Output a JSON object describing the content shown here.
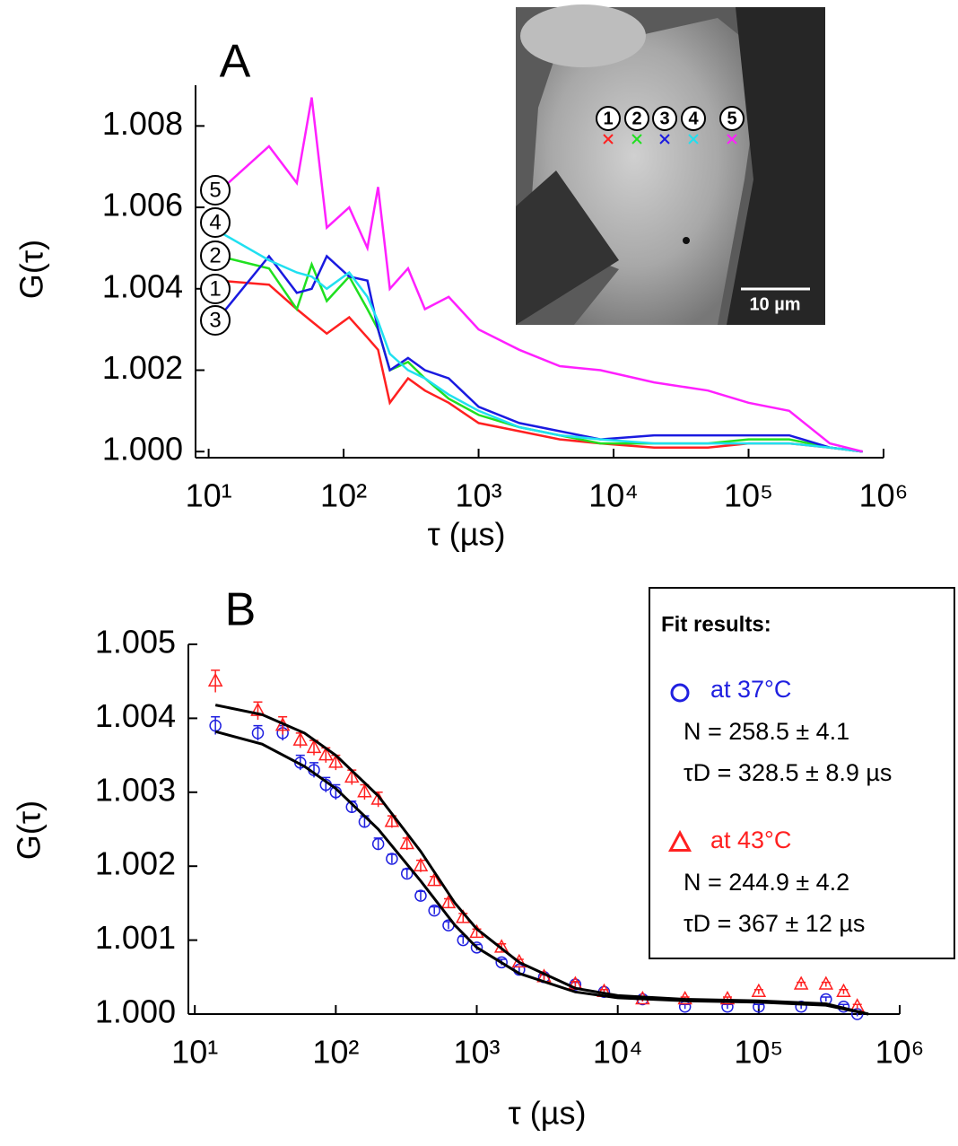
{
  "chart_data": [
    {
      "type": "line",
      "panel_label": "A",
      "xlabel": "τ (µs)",
      "ylabel": "G(τ)",
      "xscale": "log",
      "xlim": [
        8,
        1000000
      ],
      "ylim": [
        0.99985,
        1.009
      ],
      "xticks": [
        {
          "value": 10,
          "label": "10¹"
        },
        {
          "value": 100,
          "label": "10²"
        },
        {
          "value": 1000,
          "label": "10³"
        },
        {
          "value": 10000,
          "label": "10⁴"
        },
        {
          "value": 100000,
          "label": "10⁵"
        },
        {
          "value": 1000000,
          "label": "10⁶"
        }
      ],
      "yticks": [
        {
          "value": 1,
          "label": "1.000"
        },
        {
          "value": 1.002,
          "label": "1.002"
        },
        {
          "value": 1.004,
          "label": "1.004"
        },
        {
          "value": 1.006,
          "label": "1.006"
        },
        {
          "value": 1.008,
          "label": "1.008"
        }
      ],
      "series": [
        {
          "name": "1",
          "color": "#ff2020",
          "x": [
            12,
            28,
            45,
            58,
            75,
            110,
            150,
            180,
            220,
            300,
            400,
            600,
            1000,
            2000,
            4000,
            8000,
            20000,
            50000,
            100000,
            200000,
            400000,
            700000
          ],
          "values": [
            1.0042,
            1.0041,
            1.0035,
            1.0032,
            1.0029,
            1.0033,
            1.0028,
            1.0025,
            1.0012,
            1.0018,
            1.0015,
            1.0012,
            1.0007,
            1.0005,
            1.0003,
            1.0002,
            1.0001,
            1.0001,
            1.0002,
            1.0002,
            1.0001,
            1.0
          ]
        },
        {
          "name": "2",
          "color": "#20e020",
          "x": [
            12,
            28,
            45,
            58,
            75,
            110,
            150,
            180,
            220,
            300,
            400,
            600,
            1000,
            2000,
            4000,
            8000,
            20000,
            50000,
            100000,
            200000,
            400000,
            700000
          ],
          "values": [
            1.0048,
            1.0045,
            1.0035,
            1.0046,
            1.0037,
            1.0043,
            1.0035,
            1.003,
            1.002,
            1.0022,
            1.0018,
            1.0013,
            1.0009,
            1.0006,
            1.0004,
            1.0002,
            1.0002,
            1.0002,
            1.0003,
            1.0003,
            1.0001,
            1.0
          ]
        },
        {
          "name": "3",
          "color": "#1a1ae0",
          "x": [
            12,
            28,
            45,
            58,
            75,
            110,
            150,
            180,
            220,
            300,
            400,
            600,
            1000,
            2000,
            4000,
            8000,
            20000,
            50000,
            100000,
            200000,
            400000,
            700000
          ],
          "values": [
            1.0033,
            1.0048,
            1.0039,
            1.004,
            1.0048,
            1.0043,
            1.0042,
            1.003,
            1.002,
            1.0023,
            1.002,
            1.0018,
            1.0011,
            1.0007,
            1.0005,
            1.0003,
            1.0004,
            1.0004,
            1.0004,
            1.0004,
            1.0001,
            1.0
          ]
        },
        {
          "name": "4",
          "color": "#20e0f0",
          "x": [
            12,
            28,
            45,
            58,
            75,
            110,
            150,
            180,
            220,
            300,
            400,
            600,
            1000,
            2000,
            4000,
            8000,
            20000,
            50000,
            100000,
            200000,
            400000,
            700000
          ],
          "values": [
            1.0054,
            1.0047,
            1.0044,
            1.0043,
            1.004,
            1.0044,
            1.0038,
            1.0032,
            1.0024,
            1.002,
            1.0018,
            1.0014,
            1.001,
            1.0006,
            1.0004,
            1.0003,
            1.0002,
            1.0002,
            1.0002,
            1.0002,
            1.0001,
            1.0
          ]
        },
        {
          "name": "5",
          "color": "#ff20ff",
          "x": [
            12,
            28,
            45,
            58,
            75,
            110,
            150,
            180,
            220,
            300,
            400,
            600,
            1000,
            2000,
            4000,
            8000,
            20000,
            50000,
            100000,
            200000,
            400000,
            700000
          ],
          "values": [
            1.0064,
            1.0075,
            1.0066,
            1.0087,
            1.0055,
            1.006,
            1.005,
            1.0065,
            1.004,
            1.0045,
            1.0035,
            1.0038,
            1.003,
            1.0025,
            1.0021,
            1.002,
            1.0017,
            1.0015,
            1.0012,
            1.001,
            1.0002,
            1.0
          ]
        }
      ],
      "inset": {
        "scale_bar": "10 µm"
      }
    },
    {
      "type": "scatter",
      "panel_label": "B",
      "xlabel": "τ (µs)",
      "ylabel": "G(τ)",
      "xscale": "log",
      "xlim": [
        9,
        1000000
      ],
      "ylim": [
        1,
        1.005
      ],
      "xticks": [
        {
          "value": 10,
          "label": "10¹"
        },
        {
          "value": 100,
          "label": "10²"
        },
        {
          "value": 1000,
          "label": "10³"
        },
        {
          "value": 10000,
          "label": "10⁴"
        },
        {
          "value": 100000,
          "label": "10⁵"
        },
        {
          "value": 1000000,
          "label": "10⁶"
        }
      ],
      "yticks": [
        {
          "value": 1,
          "label": "1.000"
        },
        {
          "value": 1.001,
          "label": "1.001"
        },
        {
          "value": 1.002,
          "label": "1.002"
        },
        {
          "value": 1.003,
          "label": "1.003"
        },
        {
          "value": 1.004,
          "label": "1.004"
        },
        {
          "value": 1.005,
          "label": "1.005"
        }
      ],
      "legend_title": "Fit results:",
      "series": [
        {
          "name": "at 37°C",
          "color": "#2020e0",
          "marker": "circle",
          "fit_results": [
            "N  = 258.5 ± 4.1",
            "τD = 328.5 ± 8.9 µs"
          ],
          "x": [
            14,
            28,
            42,
            56,
            70,
            85,
            100,
            130,
            160,
            200,
            250,
            320,
            400,
            500,
            630,
            800,
            1000,
            1500,
            2000,
            3000,
            5000,
            8000,
            15000,
            30000,
            60000,
            100000,
            200000,
            300000,
            400000,
            500000
          ],
          "values": [
            1.0039,
            1.0038,
            1.0038,
            1.0034,
            1.0033,
            1.0031,
            1.003,
            1.0028,
            1.0026,
            1.0023,
            1.0021,
            1.0019,
            1.0016,
            1.0014,
            1.0012,
            1.001,
            1.0009,
            1.0007,
            1.0006,
            1.0005,
            1.0004,
            1.0003,
            1.0002,
            1.0001,
            1.0001,
            1.0001,
            1.0001,
            1.0002,
            1.0001,
            1.0
          ],
          "errors": [
            0.00012,
            0.0001,
            0.0001,
            0.0001,
            0.0001,
            0.0001,
            0.0001,
            8e-05,
            8e-05,
            8e-05,
            6e-05,
            6e-05,
            6e-05,
            5e-05,
            5e-05,
            5e-05,
            4e-05,
            4e-05,
            4e-05,
            3e-05,
            3e-05,
            3e-05,
            3e-05,
            3e-05,
            3e-05,
            3e-05,
            3e-05,
            3e-05,
            3e-05,
            3e-05
          ]
        },
        {
          "name": "at 43°C",
          "color": "#ff2020",
          "marker": "triangle",
          "fit_results": [
            "N  = 244.9 ± 4.2",
            "τD = 367 ± 12 µs"
          ],
          "x": [
            14,
            28,
            42,
            56,
            70,
            85,
            100,
            130,
            160,
            200,
            250,
            320,
            400,
            500,
            630,
            800,
            1000,
            1500,
            2000,
            3000,
            5000,
            8000,
            15000,
            30000,
            60000,
            100000,
            200000,
            300000,
            400000,
            500000
          ],
          "values": [
            1.0045,
            1.0041,
            1.0039,
            1.0037,
            1.0036,
            1.0035,
            1.0034,
            1.0032,
            1.003,
            1.0029,
            1.0026,
            1.0023,
            1.002,
            1.0018,
            1.0015,
            1.0013,
            1.0011,
            1.0009,
            1.0007,
            1.0005,
            1.0004,
            1.0003,
            1.0002,
            1.0002,
            1.0002,
            1.0003,
            1.0004,
            1.0004,
            1.0003,
            1.0001
          ],
          "errors": [
            0.00015,
            0.00012,
            0.00012,
            0.0001,
            0.0001,
            0.0001,
            0.0001,
            0.0001,
            0.0001,
            0.0001,
            8e-05,
            8e-05,
            8e-05,
            6e-05,
            6e-05,
            6e-05,
            5e-05,
            5e-05,
            4e-05,
            4e-05,
            4e-05,
            3e-05,
            3e-05,
            3e-05,
            3e-05,
            3e-05,
            3e-05,
            3e-05,
            3e-05,
            3e-05
          ]
        }
      ],
      "fits": [
        {
          "color": "#000000",
          "x": [
            14,
            30,
            60,
            100,
            200,
            400,
            700,
            1000,
            2000,
            5000,
            10000,
            30000,
            100000,
            300000,
            600000
          ],
          "values": [
            1.00382,
            1.00365,
            1.00335,
            1.00305,
            1.0025,
            1.0018,
            1.0012,
            1.0009,
            1.00055,
            1.0003,
            1.00022,
            1.00018,
            1.00016,
            1.00012,
            1.0
          ]
        },
        {
          "color": "#000000",
          "x": [
            14,
            30,
            60,
            100,
            200,
            400,
            700,
            1000,
            2000,
            5000,
            10000,
            30000,
            100000,
            300000,
            600000
          ],
          "values": [
            1.00418,
            1.00405,
            1.0038,
            1.0035,
            1.00295,
            1.0022,
            1.0015,
            1.00115,
            1.0007,
            1.00035,
            1.00025,
            1.0002,
            1.00018,
            1.00014,
            1.0
          ]
        }
      ]
    }
  ]
}
